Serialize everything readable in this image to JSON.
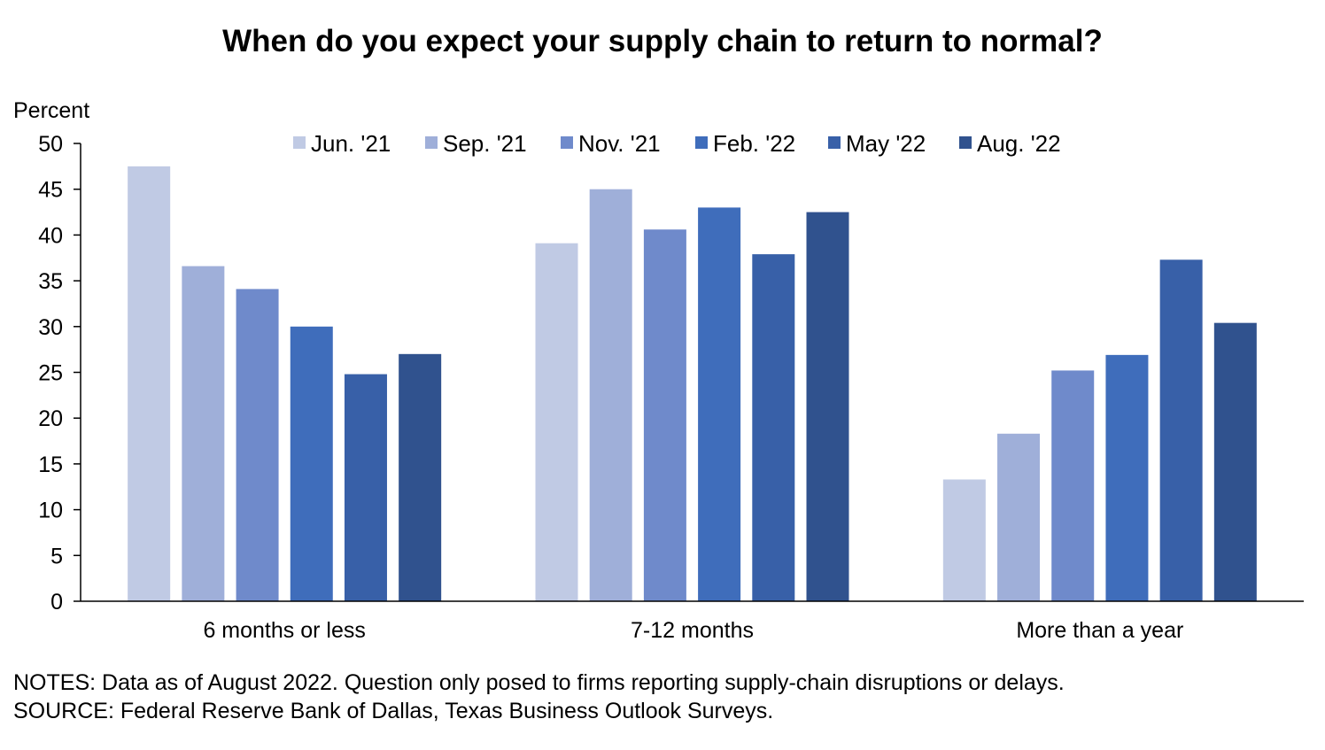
{
  "chart_data": {
    "type": "bar",
    "title": "When do you expect your supply chain to return to normal?",
    "ylabel": "Percent",
    "xlabel": "",
    "ylim": [
      0,
      50
    ],
    "yticks": [
      0,
      5,
      10,
      15,
      20,
      25,
      30,
      35,
      40,
      45,
      50
    ],
    "categories": [
      "6 months or less",
      "7-12 months",
      "More than a year"
    ],
    "legend_position": "top",
    "grid": false,
    "series": [
      {
        "name": "Jun. '21",
        "color": "#c0cae4",
        "values": [
          47.5,
          39.1,
          13.3
        ]
      },
      {
        "name": "Sep. '21",
        "color": "#9fafd9",
        "values": [
          36.6,
          45.0,
          18.3
        ]
      },
      {
        "name": "Nov. '21",
        "color": "#6f8acb",
        "values": [
          34.1,
          40.6,
          25.2
        ]
      },
      {
        "name": "Feb. '22",
        "color": "#3f6dbb",
        "values": [
          30.0,
          43.0,
          26.9
        ]
      },
      {
        "name": "May '22",
        "color": "#3860a8",
        "values": [
          24.8,
          37.9,
          37.3
        ]
      },
      {
        "name": "Aug. '22",
        "color": "#30528e",
        "values": [
          27.0,
          42.5,
          30.4
        ]
      }
    ]
  },
  "notes": {
    "line1": "NOTES: Data as of August 2022. Question only posed to firms reporting supply-chain disruptions or delays.",
    "line2": "SOURCE: Federal Reserve Bank of Dallas, Texas Business Outlook Surveys."
  }
}
